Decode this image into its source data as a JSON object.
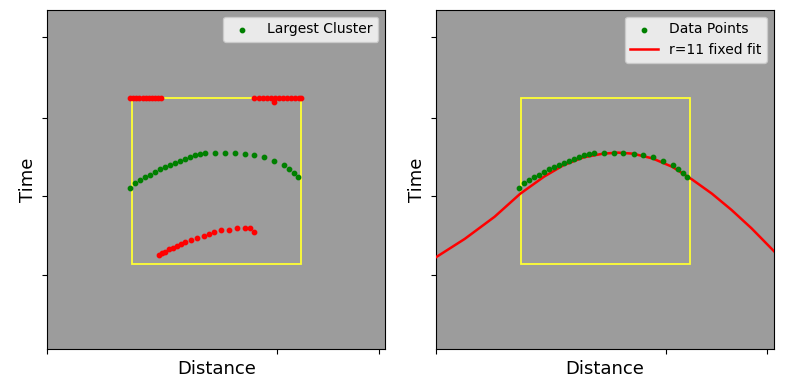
{
  "chart_data": [
    {
      "type": "scatter",
      "x_label": "Distance",
      "y_label": "Time",
      "xlim": [
        0,
        100
      ],
      "ylim": [
        100,
        0
      ],
      "xticks": [
        0,
        68,
        98
      ],
      "yticks": [
        8,
        32,
        55,
        78
      ],
      "tick_labels": false,
      "legend": "upper right",
      "box": {
        "x": [
          25,
          75
        ],
        "y": [
          26,
          75
        ],
        "color": "#ffff33"
      },
      "series": [
        {
          "name": "Largest Cluster",
          "color": "#008000",
          "marker": "o",
          "type": "scatter",
          "x": [
            24.6,
            26.1,
            27.6,
            29.0,
            30.5,
            32.0,
            33.4,
            34.9,
            36.4,
            37.9,
            39.3,
            40.8,
            42.2,
            43.7,
            45.2,
            46.6,
            49.6,
            52.5,
            55.4,
            58.4,
            61.3,
            64.2,
            67.2,
            70.1,
            71.6,
            73.0,
            74.2
          ],
          "values": [
            52.5,
            51.1,
            50.3,
            49.4,
            48.6,
            47.7,
            46.9,
            46.3,
            45.8,
            45.2,
            44.6,
            44.1,
            43.5,
            42.9,
            42.4,
            42.1,
            42.1,
            42.1,
            42.1,
            42.4,
            42.9,
            43.5,
            44.6,
            45.8,
            46.9,
            48.0,
            49.4
          ]
        },
        {
          "color": "#ff0000",
          "marker": "o",
          "type": "scatter",
          "x": [
            24.6,
            25.5,
            26.4,
            27.3,
            28.2,
            29.1,
            30.0,
            30.9,
            31.8,
            32.7,
            33.6,
            61.3,
            62.5,
            63.7,
            64.9,
            66.1,
            67.3,
            68.5,
            69.7,
            70.9,
            72.1,
            73.3,
            74.5,
            75.0,
            67.2
          ],
          "values": [
            26.0,
            26.0,
            26.0,
            26.0,
            26.0,
            26.0,
            26.0,
            26.0,
            26.0,
            26.0,
            26.0,
            26.0,
            26.0,
            26.0,
            26.0,
            26.0,
            26.0,
            26.0,
            26.0,
            26.0,
            26.0,
            26.0,
            26.0,
            26.0,
            27.1
          ]
        },
        {
          "color": "#ff0000",
          "marker": "o",
          "type": "scatter",
          "x": [
            33.1,
            34.0,
            34.9,
            36.1,
            37.2,
            38.4,
            39.6,
            40.8,
            42.5,
            44.3,
            46.3,
            47.8,
            49.3,
            51.3,
            53.7,
            56.0,
            58.4,
            60.1,
            61.3
          ],
          "values": [
            72.3,
            71.8,
            71.5,
            70.6,
            70.1,
            69.5,
            68.9,
            68.4,
            67.8,
            67.2,
            66.7,
            66.1,
            65.5,
            65.0,
            65.0,
            64.4,
            64.4,
            64.4,
            65.5
          ]
        }
      ]
    },
    {
      "type": "scatter",
      "x_label": "Distance",
      "y_label": "Time",
      "xlim": [
        0,
        100
      ],
      "ylim": [
        100,
        0
      ],
      "xticks": [
        0,
        68,
        98
      ],
      "yticks": [
        8,
        32,
        55,
        78
      ],
      "tick_labels": false,
      "legend": "upper right",
      "box": {
        "x": [
          25,
          75
        ],
        "y": [
          26,
          75
        ],
        "color": "#ffff33"
      },
      "series": [
        {
          "name": "Data Points",
          "color": "#008000",
          "marker": "o",
          "type": "scatter",
          "x": [
            24.6,
            26.1,
            27.6,
            29.0,
            30.5,
            32.0,
            33.4,
            34.9,
            36.4,
            37.9,
            39.3,
            40.8,
            42.2,
            43.7,
            45.2,
            46.6,
            49.6,
            52.5,
            55.4,
            58.4,
            61.3,
            64.2,
            67.2,
            70.1,
            71.6,
            73.0,
            74.2
          ],
          "values": [
            52.5,
            51.1,
            50.3,
            49.4,
            48.6,
            47.7,
            46.9,
            46.3,
            45.8,
            45.2,
            44.6,
            44.1,
            43.5,
            42.9,
            42.4,
            42.1,
            42.1,
            42.1,
            42.1,
            42.4,
            42.9,
            43.5,
            44.6,
            45.8,
            46.9,
            48.0,
            49.4
          ]
        },
        {
          "name": "r=11 fixed fit",
          "color": "#ff0000",
          "type": "line",
          "line_style": "solid",
          "x": [
            0,
            8.5,
            17.3,
            24.9,
            31.9,
            37.7,
            43.6,
            49.4,
            53.8,
            58.2,
            64.0,
            69.9,
            75.7,
            81.6,
            87.4,
            93.3,
            100
          ],
          "values": [
            72.9,
            67.5,
            61.0,
            54.2,
            49.2,
            45.8,
            43.5,
            42.4,
            42.1,
            42.4,
            43.8,
            46.3,
            50.0,
            54.2,
            59.0,
            64.4,
            71.2
          ]
        }
      ]
    }
  ]
}
